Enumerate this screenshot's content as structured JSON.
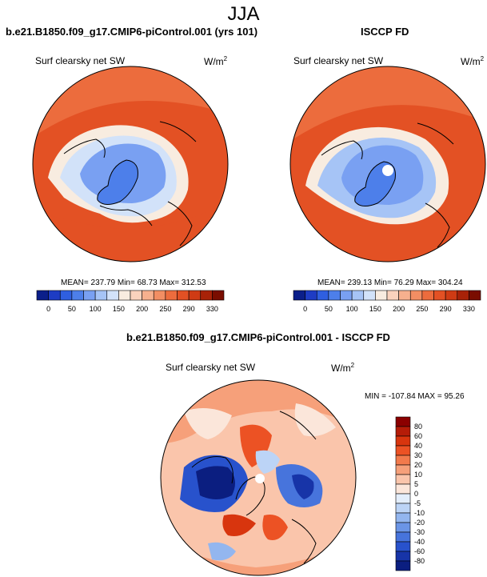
{
  "figure": {
    "season": "JJA",
    "panel_left_title": "b.e21.B1850.f09_g17.CMIP6-piControl.001 (yrs 101)",
    "panel_right_title": "ISCCP FD",
    "panel_bottom_title": "b.e21.B1850.f09_g17.CMIP6-piControl.001 - ISCCP FD",
    "variable": "Surf clearsky net SW",
    "units_base": "W/m",
    "units_exp": "2"
  },
  "chart_data": [
    {
      "type": "heatmap",
      "projection": "north-polar-stereographic",
      "title": "b.e21.B1850.f09_g17.CMIP6-piControl.001 (yrs 101)",
      "variable": "Surf clearsky net SW",
      "units": "W/m2",
      "stats_text": "MEAN= 237.79  Min=  68.73  Max= 312.53",
      "mean": 237.79,
      "min": 68.73,
      "max": 312.53,
      "colorbar_levels": [
        "0",
        "50",
        "100",
        "150",
        "200",
        "250",
        "290",
        "330"
      ],
      "colorbar_colors": [
        "#0b1f8a",
        "#1e3cc4",
        "#2f5fe0",
        "#4d7fea",
        "#79a0f2",
        "#a6c4f6",
        "#d2e2f9",
        "#f8ece0",
        "#fad2bd",
        "#f6b08e",
        "#f28e63",
        "#ec6c3d",
        "#e35124",
        "#cf3b14",
        "#a82208",
        "#7a0d00"
      ]
    },
    {
      "type": "heatmap",
      "projection": "north-polar-stereographic",
      "title": "ISCCP FD",
      "variable": "Surf clearsky net SW",
      "units": "W/m2",
      "stats_text": "MEAN= 239.13  Min=  76.29  Max= 304.24",
      "mean": 239.13,
      "min": 76.29,
      "max": 304.24,
      "colorbar_levels": [
        "0",
        "50",
        "100",
        "150",
        "200",
        "250",
        "290",
        "330"
      ],
      "colorbar_colors": [
        "#0b1f8a",
        "#1e3cc4",
        "#2f5fe0",
        "#4d7fea",
        "#79a0f2",
        "#a6c4f6",
        "#d2e2f9",
        "#f8ece0",
        "#fad2bd",
        "#f6b08e",
        "#f28e63",
        "#ec6c3d",
        "#e35124",
        "#cf3b14",
        "#a82208",
        "#7a0d00"
      ]
    },
    {
      "type": "heatmap",
      "projection": "north-polar-stereographic",
      "title": "b.e21.B1850.f09_g17.CMIP6-piControl.001 - ISCCP FD",
      "variable": "Surf clearsky net SW",
      "units": "W/m2",
      "stats_text": "MIN = -107.84 MAX =  95.26",
      "min": -107.84,
      "max": 95.26,
      "colorbar_levels": [
        "80",
        "60",
        "40",
        "30",
        "20",
        "10",
        "5",
        "0",
        "-5",
        "-10",
        "-20",
        "-30",
        "-40",
        "-60",
        "-80"
      ],
      "colorbar_colors": [
        "#8b0000",
        "#b51c08",
        "#d8350e",
        "#ec5224",
        "#f27a4c",
        "#f6a07a",
        "#fac5ab",
        "#fbe6da",
        "#e3eefb",
        "#bcd4f6",
        "#93b6ef",
        "#6b95e6",
        "#4774dc",
        "#2852cc",
        "#1734a8",
        "#0b1e80"
      ]
    }
  ]
}
